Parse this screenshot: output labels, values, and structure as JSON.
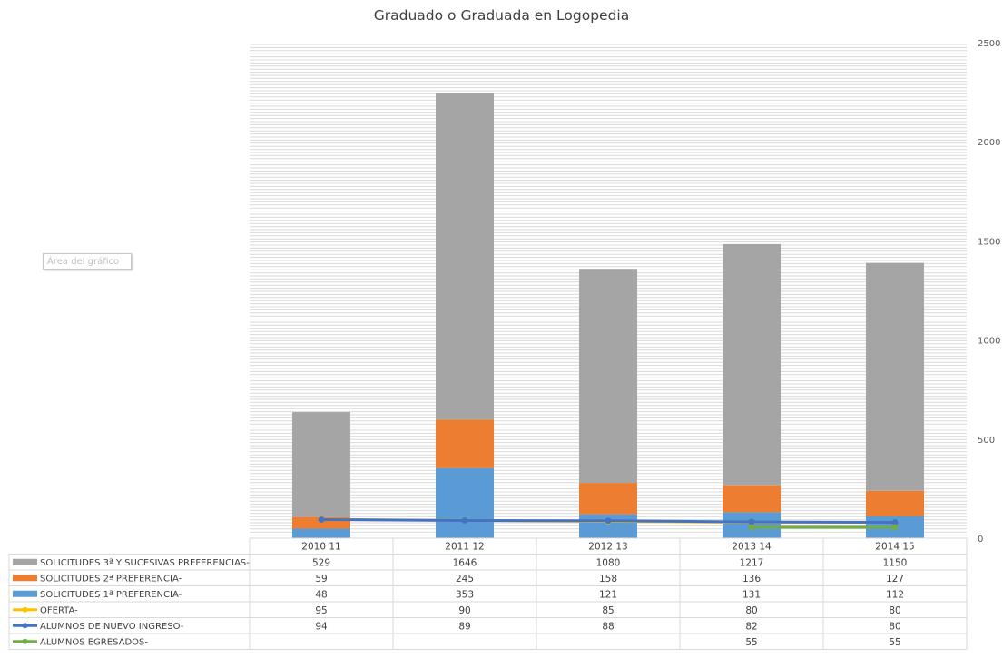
{
  "chart_data": {
    "type": "bar",
    "title": "Graduado o Graduada en Logopedia",
    "categories": [
      "2010 11",
      "2011 12",
      "2012 13",
      "2013 14",
      "2014 15"
    ],
    "ylim": [
      0,
      2500
    ],
    "yticks": [
      0,
      500,
      1000,
      1500,
      2000,
      2500
    ],
    "y_axis_side": "right",
    "grid": true,
    "legend_placement": "data-table-left",
    "stacked_bars": [
      {
        "name": "SOLICITUDES 1ª PREFERENCIA-",
        "values": [
          48,
          353,
          121,
          131,
          112
        ],
        "color": "#5b9bd5"
      },
      {
        "name": "SOLICITUDES 2ª PREFERENCIA-",
        "values": [
          59,
          245,
          158,
          136,
          127
        ],
        "color": "#ed7d31"
      },
      {
        "name": "SOLICITUDES 3ª Y SUCESIVAS PREFERENCIAS-",
        "values": [
          529,
          1646,
          1080,
          1217,
          1150
        ],
        "color": "#a5a5a5"
      }
    ],
    "lines": [
      {
        "name": "OFERTA-",
        "values": [
          95,
          90,
          85,
          80,
          80
        ],
        "color": "#ffc000"
      },
      {
        "name": "ALUMNOS DE NUEVO INGRESO-",
        "values": [
          94,
          89,
          88,
          82,
          80
        ],
        "color": "#4472c4"
      },
      {
        "name": "ALUMNOS EGRESADOS-",
        "values": [
          null,
          null,
          null,
          55,
          55
        ],
        "color": "#70ad47"
      }
    ],
    "table_rows": [
      {
        "name": "SOLICITUDES 3ª Y SUCESIVAS PREFERENCIAS-",
        "marker": "bar",
        "color": "#a5a5a5",
        "cells": [
          "529",
          "1646",
          "1080",
          "1217",
          "1150"
        ]
      },
      {
        "name": "SOLICITUDES 2ª PREFERENCIA-",
        "marker": "bar",
        "color": "#ed7d31",
        "cells": [
          "59",
          "245",
          "158",
          "136",
          "127"
        ]
      },
      {
        "name": "SOLICITUDES 1ª PREFERENCIA-",
        "marker": "bar",
        "color": "#5b9bd5",
        "cells": [
          "48",
          "353",
          "121",
          "131",
          "112"
        ]
      },
      {
        "name": "OFERTA-",
        "marker": "line",
        "color": "#ffc000",
        "cells": [
          "95",
          "90",
          "85",
          "80",
          "80"
        ]
      },
      {
        "name": "ALUMNOS DE NUEVO INGRESO-",
        "marker": "line",
        "color": "#4472c4",
        "cells": [
          "94",
          "89",
          "88",
          "82",
          "80"
        ]
      },
      {
        "name": "ALUMNOS EGRESADOS-",
        "marker": "line",
        "color": "#70ad47",
        "cells": [
          "",
          "",
          "",
          "55",
          "55"
        ]
      }
    ]
  },
  "area_label": "Área del gráfico"
}
